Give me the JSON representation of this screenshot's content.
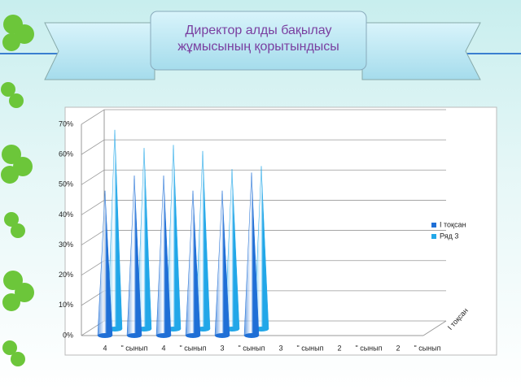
{
  "chart_data": {
    "type": "bar",
    "title": "Директор алды бақылау жұмысының қорытындысы",
    "categories": [
      "4",
      "\" сынып",
      "4",
      "\" сынып",
      "3",
      "\" сынып",
      "3",
      "\" сынып",
      "2",
      "\" сынып",
      "2",
      "\" сынып"
    ],
    "series": [
      {
        "name": "І тоқсан",
        "color": "#1f6fd6",
        "values": [
          48,
          53,
          53,
          48,
          48,
          54,
          null,
          null,
          null,
          null,
          null,
          null
        ]
      },
      {
        "name": "Ряд 3",
        "color": "#22a7e8",
        "values": [
          66,
          60,
          61,
          59,
          53,
          54,
          null,
          null,
          null,
          null,
          null,
          null
        ]
      }
    ],
    "z_axis_label": "І тоқсан",
    "ylim": [
      0,
      70
    ],
    "yticks": [
      {
        "value": 0,
        "label": "0%"
      },
      {
        "value": 10,
        "label": "10%"
      },
      {
        "value": 20,
        "label": "20%"
      },
      {
        "value": 30,
        "label": "30%"
      },
      {
        "value": 40,
        "label": "40%"
      },
      {
        "value": 50,
        "label": "50%"
      },
      {
        "value": 60,
        "label": "60%"
      },
      {
        "value": 70,
        "label": "70%"
      }
    ],
    "grid": true
  }
}
